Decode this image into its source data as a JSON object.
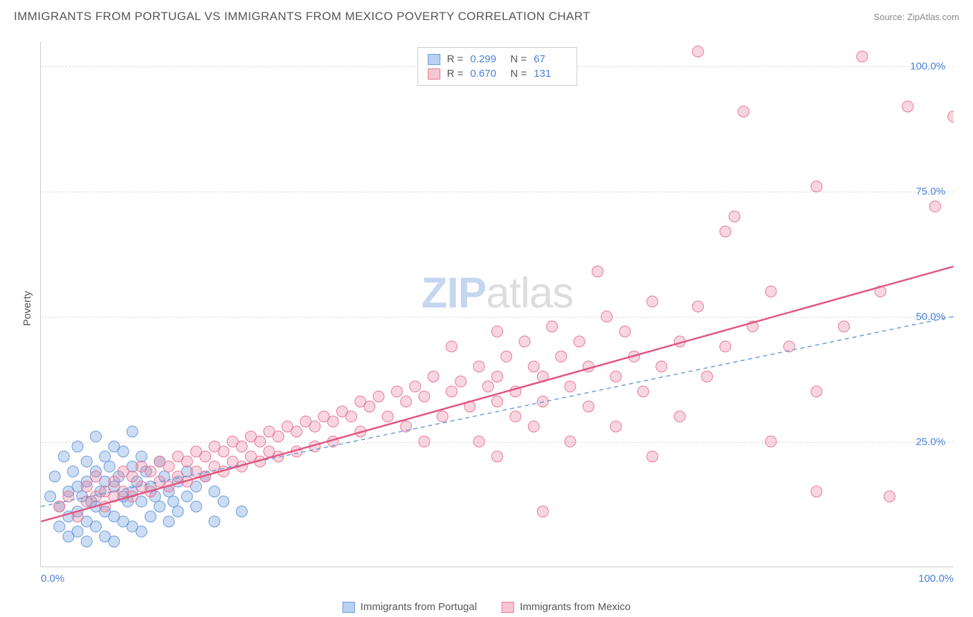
{
  "header": {
    "title": "IMMIGRANTS FROM PORTUGAL VS IMMIGRANTS FROM MEXICO POVERTY CORRELATION CHART",
    "source_label": "Source:",
    "source_name": "ZipAtlas.com"
  },
  "axes": {
    "y_label": "Poverty",
    "y_ticks": [
      {
        "value": 25,
        "label": "25.0%"
      },
      {
        "value": 50,
        "label": "50.0%"
      },
      {
        "value": 75,
        "label": "75.0%"
      },
      {
        "value": 100,
        "label": "100.0%"
      }
    ],
    "x_tick_left": "0.0%",
    "x_tick_right": "100.0%",
    "xlim": [
      0,
      100
    ],
    "ylim": [
      0,
      105
    ]
  },
  "series": [
    {
      "id": "portugal",
      "label": "Immigrants from Portugal",
      "color_fill": "rgba(106,156,221,0.35)",
      "color_stroke": "#6a9cdd",
      "swatch_fill": "#b9d1f0",
      "swatch_border": "#6a9cdd",
      "r_value": "0.299",
      "n_value": "67",
      "trend": {
        "x1": 0,
        "y1": 12,
        "x2": 100,
        "y2": 50,
        "dash": "6,5",
        "width": 1.5,
        "color": "#6a9cdd"
      },
      "points": [
        [
          1,
          14
        ],
        [
          1.5,
          18
        ],
        [
          2,
          12
        ],
        [
          2,
          8
        ],
        [
          2.5,
          22
        ],
        [
          3,
          15
        ],
        [
          3,
          10
        ],
        [
          3,
          6
        ],
        [
          3.5,
          19
        ],
        [
          4,
          24
        ],
        [
          4,
          16
        ],
        [
          4,
          11
        ],
        [
          4,
          7
        ],
        [
          4.5,
          14
        ],
        [
          5,
          21
        ],
        [
          5,
          17
        ],
        [
          5,
          9
        ],
        [
          5,
          5
        ],
        [
          5.5,
          13
        ],
        [
          6,
          26
        ],
        [
          6,
          19
        ],
        [
          6,
          12
        ],
        [
          6,
          8
        ],
        [
          6.5,
          15
        ],
        [
          7,
          22
        ],
        [
          7,
          17
        ],
        [
          7,
          11
        ],
        [
          7,
          6
        ],
        [
          7.5,
          20
        ],
        [
          8,
          24
        ],
        [
          8,
          16
        ],
        [
          8,
          10
        ],
        [
          8,
          5
        ],
        [
          8.5,
          18
        ],
        [
          9,
          23
        ],
        [
          9,
          14
        ],
        [
          9,
          9
        ],
        [
          9.5,
          13
        ],
        [
          10,
          27
        ],
        [
          10,
          20
        ],
        [
          10,
          15
        ],
        [
          10,
          8
        ],
        [
          10.5,
          17
        ],
        [
          11,
          22
        ],
        [
          11,
          13
        ],
        [
          11,
          7
        ],
        [
          11.5,
          19
        ],
        [
          12,
          16
        ],
        [
          12,
          10
        ],
        [
          12.5,
          14
        ],
        [
          13,
          21
        ],
        [
          13,
          12
        ],
        [
          13.5,
          18
        ],
        [
          14,
          15
        ],
        [
          14,
          9
        ],
        [
          14.5,
          13
        ],
        [
          15,
          17
        ],
        [
          15,
          11
        ],
        [
          16,
          19
        ],
        [
          16,
          14
        ],
        [
          17,
          16
        ],
        [
          17,
          12
        ],
        [
          18,
          18
        ],
        [
          19,
          9
        ],
        [
          19,
          15
        ],
        [
          20,
          13
        ],
        [
          22,
          11
        ]
      ]
    },
    {
      "id": "mexico",
      "label": "Immigrants from Mexico",
      "color_fill": "rgba(232,120,150,0.30)",
      "color_stroke": "#e87896",
      "swatch_fill": "#f6c6d3",
      "swatch_border": "#e87896",
      "r_value": "0.670",
      "n_value": "131",
      "trend": {
        "x1": 0,
        "y1": 9,
        "x2": 100,
        "y2": 60,
        "dash": "",
        "width": 2.5,
        "color": "#e25580"
      },
      "points": [
        [
          2,
          12
        ],
        [
          3,
          14
        ],
        [
          4,
          10
        ],
        [
          5,
          16
        ],
        [
          5,
          13
        ],
        [
          6,
          18
        ],
        [
          6,
          14
        ],
        [
          7,
          15
        ],
        [
          7,
          12
        ],
        [
          8,
          17
        ],
        [
          8,
          14
        ],
        [
          9,
          19
        ],
        [
          9,
          15
        ],
        [
          10,
          18
        ],
        [
          10,
          14
        ],
        [
          11,
          20
        ],
        [
          11,
          16
        ],
        [
          12,
          19
        ],
        [
          12,
          15
        ],
        [
          13,
          21
        ],
        [
          13,
          17
        ],
        [
          14,
          20
        ],
        [
          14,
          16
        ],
        [
          15,
          22
        ],
        [
          15,
          18
        ],
        [
          16,
          21
        ],
        [
          16,
          17
        ],
        [
          17,
          23
        ],
        [
          17,
          19
        ],
        [
          18,
          22
        ],
        [
          18,
          18
        ],
        [
          19,
          24
        ],
        [
          19,
          20
        ],
        [
          20,
          23
        ],
        [
          20,
          19
        ],
        [
          21,
          25
        ],
        [
          21,
          21
        ],
        [
          22,
          24
        ],
        [
          22,
          20
        ],
        [
          23,
          26
        ],
        [
          23,
          22
        ],
        [
          24,
          25
        ],
        [
          24,
          21
        ],
        [
          25,
          27
        ],
        [
          25,
          23
        ],
        [
          26,
          26
        ],
        [
          26,
          22
        ],
        [
          27,
          28
        ],
        [
          28,
          27
        ],
        [
          28,
          23
        ],
        [
          29,
          29
        ],
        [
          30,
          28
        ],
        [
          30,
          24
        ],
        [
          31,
          30
        ],
        [
          32,
          29
        ],
        [
          32,
          25
        ],
        [
          33,
          31
        ],
        [
          34,
          30
        ],
        [
          35,
          33
        ],
        [
          35,
          27
        ],
        [
          36,
          32
        ],
        [
          37,
          34
        ],
        [
          38,
          30
        ],
        [
          39,
          35
        ],
        [
          40,
          33
        ],
        [
          40,
          28
        ],
        [
          41,
          36
        ],
        [
          42,
          34
        ],
        [
          42,
          25
        ],
        [
          43,
          38
        ],
        [
          44,
          30
        ],
        [
          45,
          44
        ],
        [
          45,
          35
        ],
        [
          46,
          37
        ],
        [
          47,
          32
        ],
        [
          48,
          40
        ],
        [
          48,
          25
        ],
        [
          49,
          36
        ],
        [
          50,
          47
        ],
        [
          50,
          38
        ],
        [
          50,
          33
        ],
        [
          50,
          22
        ],
        [
          51,
          42
        ],
        [
          52,
          35
        ],
        [
          52,
          30
        ],
        [
          53,
          45
        ],
        [
          54,
          40
        ],
        [
          54,
          28
        ],
        [
          55,
          38
        ],
        [
          55,
          33
        ],
        [
          55,
          11
        ],
        [
          56,
          48
        ],
        [
          57,
          42
        ],
        [
          58,
          36
        ],
        [
          58,
          25
        ],
        [
          59,
          45
        ],
        [
          60,
          40
        ],
        [
          60,
          32
        ],
        [
          61,
          59
        ],
        [
          62,
          50
        ],
        [
          63,
          38
        ],
        [
          63,
          28
        ],
        [
          64,
          47
        ],
        [
          65,
          42
        ],
        [
          66,
          35
        ],
        [
          67,
          53
        ],
        [
          67,
          22
        ],
        [
          68,
          40
        ],
        [
          70,
          45
        ],
        [
          70,
          30
        ],
        [
          72,
          52
        ],
        [
          72,
          103
        ],
        [
          73,
          38
        ],
        [
          75,
          67
        ],
        [
          75,
          44
        ],
        [
          76,
          70
        ],
        [
          77,
          91
        ],
        [
          78,
          48
        ],
        [
          80,
          55
        ],
        [
          80,
          25
        ],
        [
          82,
          44
        ],
        [
          85,
          76
        ],
        [
          85,
          35
        ],
        [
          88,
          48
        ],
        [
          90,
          102
        ],
        [
          92,
          55
        ],
        [
          93,
          14
        ],
        [
          95,
          92
        ],
        [
          98,
          72
        ],
        [
          100,
          90
        ],
        [
          85,
          15
        ]
      ]
    }
  ],
  "legend_top": {
    "r_label": "R =",
    "n_label": "N ="
  },
  "watermark": {
    "part1": "ZIP",
    "part2": "atlas"
  },
  "chart": {
    "marker_radius": 8,
    "background": "#ffffff",
    "grid_color": "#dddddd"
  }
}
